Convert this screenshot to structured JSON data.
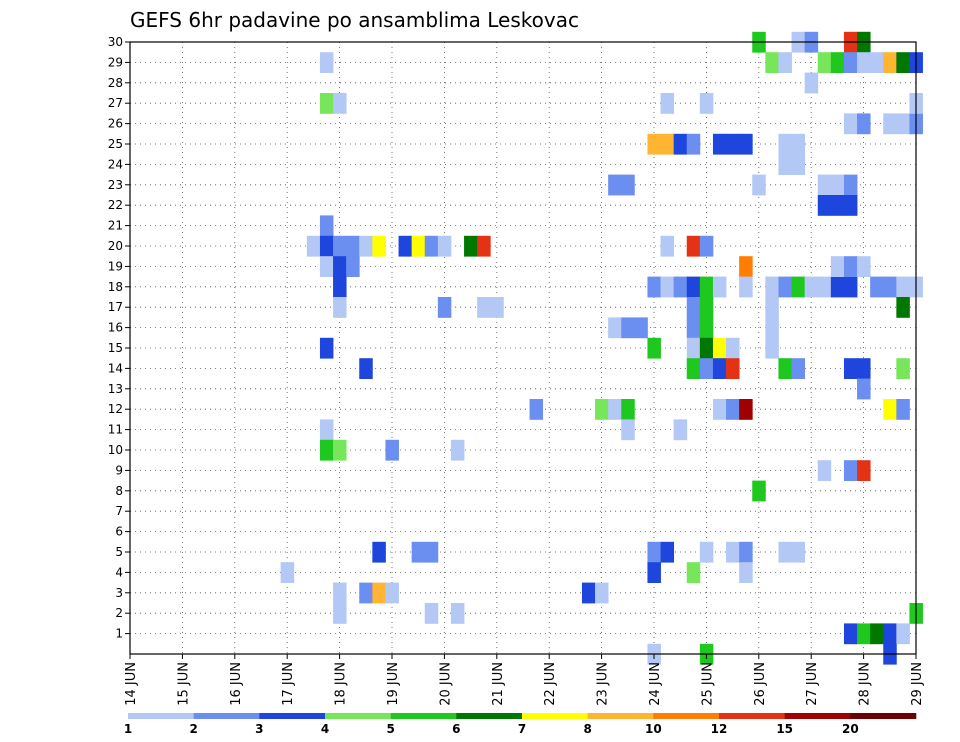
{
  "chart_data": {
    "type": "heatmap",
    "title": "GEFS 6hr padavine po ansamblima Leskovac",
    "xlabel": "",
    "ylabel": "",
    "x_start": "2013-06-14T00",
    "x_end": "2013-06-29T00",
    "x_step_hours": 6,
    "xticklabels": [
      "14 JUN",
      "15 JUN",
      "16 JUN",
      "17 JUN",
      "18 JUN",
      "19 JUN",
      "20 JUN",
      "21 JUN",
      "22 JUN",
      "23 JUN",
      "24 JUN",
      "25 JUN",
      "26 JUN",
      "27 JUN",
      "28 JUN",
      "29 JUN"
    ],
    "yticklabels": [
      "1",
      "2",
      "3",
      "4",
      "5",
      "6",
      "7",
      "8",
      "9",
      "10",
      "11",
      "12",
      "13",
      "14",
      "15",
      "16",
      "17",
      "18",
      "19",
      "20",
      "21",
      "22",
      "23",
      "24",
      "25",
      "26",
      "27",
      "28",
      "29",
      "30"
    ],
    "ylim": [
      0,
      30
    ],
    "grid": true,
    "legend_position": "bottom",
    "levels": [
      "1",
      "2",
      "3",
      "4",
      "5",
      "6",
      "7",
      "8",
      "10",
      "12",
      "15",
      "20"
    ],
    "colors": [
      "#b4c8f5",
      "#6a8ff0",
      "#1e46dc",
      "#78e65a",
      "#1ec81e",
      "#007800",
      "#ffff00",
      "#ffb432",
      "#ff7d00",
      "#e63214",
      "#a00000",
      "#6e0000"
    ],
    "cells": [
      [
        17.75,
        29,
        0
      ],
      [
        17.75,
        27,
        3
      ],
      [
        18.0,
        27,
        0
      ],
      [
        17.75,
        21,
        1
      ],
      [
        17.5,
        20,
        0
      ],
      [
        17.75,
        20,
        2
      ],
      [
        18.0,
        20,
        1
      ],
      [
        18.25,
        20,
        1
      ],
      [
        18.5,
        20,
        0
      ],
      [
        18.75,
        20,
        6
      ],
      [
        19.25,
        20,
        2
      ],
      [
        19.5,
        20,
        6
      ],
      [
        19.75,
        20,
        1
      ],
      [
        20.0,
        20,
        0
      ],
      [
        20.5,
        20,
        5
      ],
      [
        20.75,
        20,
        9
      ],
      [
        17.75,
        19,
        0
      ],
      [
        18.0,
        19,
        2
      ],
      [
        18.25,
        19,
        1
      ],
      [
        18.0,
        18,
        2
      ],
      [
        18.0,
        17,
        0
      ],
      [
        17.75,
        15,
        2
      ],
      [
        18.5,
        14,
        2
      ],
      [
        17.75,
        11,
        0
      ],
      [
        17.75,
        10,
        4
      ],
      [
        18.0,
        10,
        3
      ],
      [
        19.0,
        10,
        1
      ],
      [
        20.25,
        10,
        0
      ],
      [
        17.0,
        4,
        0
      ],
      [
        18.75,
        5,
        2
      ],
      [
        19.5,
        5,
        1
      ],
      [
        19.75,
        5,
        1
      ],
      [
        18.0,
        3,
        0
      ],
      [
        18.5,
        3,
        1
      ],
      [
        18.75,
        3,
        7
      ],
      [
        19.0,
        3,
        0
      ],
      [
        18.0,
        2,
        0
      ],
      [
        19.75,
        2,
        0
      ],
      [
        20.25,
        2,
        0
      ],
      [
        20.0,
        17,
        1
      ],
      [
        20.75,
        17,
        0
      ],
      [
        21.0,
        17,
        0
      ],
      [
        21.75,
        12,
        1
      ],
      [
        22.75,
        3,
        2
      ],
      [
        23.0,
        3,
        0
      ],
      [
        23.25,
        23,
        1
      ],
      [
        23.5,
        23,
        1
      ],
      [
        24.0,
        25,
        7
      ],
      [
        24.25,
        25,
        7
      ],
      [
        24.5,
        25,
        2
      ],
      [
        24.75,
        25,
        1
      ],
      [
        25.25,
        25,
        2
      ],
      [
        25.5,
        25,
        2
      ],
      [
        25.75,
        25,
        2
      ],
      [
        26.5,
        25,
        0
      ],
      [
        26.75,
        25,
        0
      ],
      [
        26.5,
        24,
        0
      ],
      [
        26.75,
        24,
        0
      ],
      [
        24.25,
        27,
        0
      ],
      [
        25.0,
        27,
        0
      ],
      [
        24.25,
        20,
        0
      ],
      [
        24.75,
        20,
        9
      ],
      [
        25.0,
        20,
        1
      ],
      [
        25.75,
        19,
        8
      ],
      [
        24.0,
        18,
        1
      ],
      [
        24.25,
        18,
        0
      ],
      [
        24.5,
        18,
        1
      ],
      [
        24.75,
        18,
        2
      ],
      [
        25.0,
        18,
        4
      ],
      [
        25.25,
        18,
        0
      ],
      [
        25.75,
        18,
        0
      ],
      [
        26.25,
        18,
        0
      ],
      [
        26.5,
        18,
        1
      ],
      [
        26.75,
        18,
        4
      ],
      [
        27.0,
        18,
        0
      ],
      [
        27.25,
        18,
        0
      ],
      [
        27.5,
        18,
        2
      ],
      [
        27.75,
        18,
        2
      ],
      [
        28.25,
        18,
        1
      ],
      [
        28.5,
        18,
        1
      ],
      [
        28.75,
        18,
        0
      ],
      [
        29.0,
        18,
        0
      ],
      [
        24.75,
        17,
        1
      ],
      [
        25.0,
        17,
        4
      ],
      [
        26.25,
        17,
        0
      ],
      [
        28.75,
        17,
        5
      ],
      [
        23.25,
        16,
        0
      ],
      [
        23.5,
        16,
        1
      ],
      [
        23.75,
        16,
        1
      ],
      [
        24.75,
        16,
        1
      ],
      [
        25.0,
        16,
        4
      ],
      [
        26.25,
        16,
        0
      ],
      [
        24.0,
        15,
        4
      ],
      [
        24.75,
        15,
        0
      ],
      [
        25.0,
        15,
        5
      ],
      [
        25.25,
        15,
        6
      ],
      [
        25.5,
        15,
        0
      ],
      [
        26.25,
        15,
        0
      ],
      [
        24.75,
        14,
        4
      ],
      [
        25.0,
        14,
        1
      ],
      [
        25.25,
        14,
        2
      ],
      [
        25.5,
        14,
        9
      ],
      [
        26.5,
        14,
        4
      ],
      [
        26.75,
        14,
        1
      ],
      [
        27.75,
        14,
        2
      ],
      [
        28.0,
        14,
        2
      ],
      [
        28.75,
        14,
        3
      ],
      [
        28.0,
        13,
        1
      ],
      [
        23.0,
        12,
        3
      ],
      [
        23.25,
        12,
        0
      ],
      [
        23.5,
        12,
        4
      ],
      [
        25.25,
        12,
        0
      ],
      [
        25.5,
        12,
        1
      ],
      [
        25.75,
        12,
        10
      ],
      [
        28.5,
        12,
        6
      ],
      [
        28.75,
        12,
        1
      ],
      [
        23.5,
        11,
        0
      ],
      [
        24.5,
        11,
        0
      ],
      [
        27.25,
        9,
        0
      ],
      [
        27.75,
        9,
        1
      ],
      [
        28.0,
        9,
        9
      ],
      [
        26.0,
        8,
        4
      ],
      [
        24.0,
        5,
        1
      ],
      [
        24.25,
        5,
        2
      ],
      [
        25.0,
        5,
        0
      ],
      [
        25.5,
        5,
        0
      ],
      [
        25.75,
        5,
        1
      ],
      [
        26.5,
        5,
        0
      ],
      [
        26.75,
        5,
        0
      ],
      [
        24.0,
        4,
        2
      ],
      [
        24.75,
        4,
        3
      ],
      [
        25.75,
        4,
        0
      ],
      [
        29.0,
        2,
        4
      ],
      [
        27.75,
        1,
        2
      ],
      [
        28.0,
        1,
        4
      ],
      [
        28.25,
        1,
        5
      ],
      [
        28.5,
        1,
        2
      ],
      [
        28.75,
        1,
        0
      ],
      [
        28.5,
        0,
        2
      ],
      [
        24.0,
        0,
        0
      ],
      [
        25.0,
        0,
        4
      ],
      [
        26.0,
        30,
        4
      ],
      [
        26.75,
        30,
        0
      ],
      [
        27.0,
        30,
        1
      ],
      [
        27.75,
        30,
        9
      ],
      [
        28.0,
        30,
        5
      ],
      [
        26.25,
        29,
        3
      ],
      [
        26.5,
        29,
        0
      ],
      [
        27.25,
        29,
        3
      ],
      [
        27.5,
        29,
        4
      ],
      [
        27.75,
        29,
        1
      ],
      [
        28.0,
        29,
        0
      ],
      [
        28.25,
        29,
        0
      ],
      [
        28.5,
        29,
        7
      ],
      [
        28.75,
        29,
        5
      ],
      [
        29.0,
        29,
        2
      ],
      [
        27.0,
        28,
        0
      ],
      [
        27.75,
        26,
        0
      ],
      [
        28.0,
        26,
        1
      ],
      [
        28.5,
        26,
        0
      ],
      [
        28.75,
        26,
        0
      ],
      [
        29.0,
        26,
        1
      ],
      [
        29.0,
        27,
        0
      ],
      [
        26.0,
        23,
        0
      ],
      [
        27.25,
        23,
        0
      ],
      [
        27.5,
        23,
        0
      ],
      [
        27.75,
        23,
        1
      ],
      [
        27.25,
        22,
        2
      ],
      [
        27.5,
        22,
        2
      ],
      [
        27.75,
        22,
        2
      ],
      [
        27.5,
        19,
        0
      ],
      [
        27.75,
        19,
        1
      ],
      [
        28.0,
        19,
        0
      ]
    ]
  }
}
